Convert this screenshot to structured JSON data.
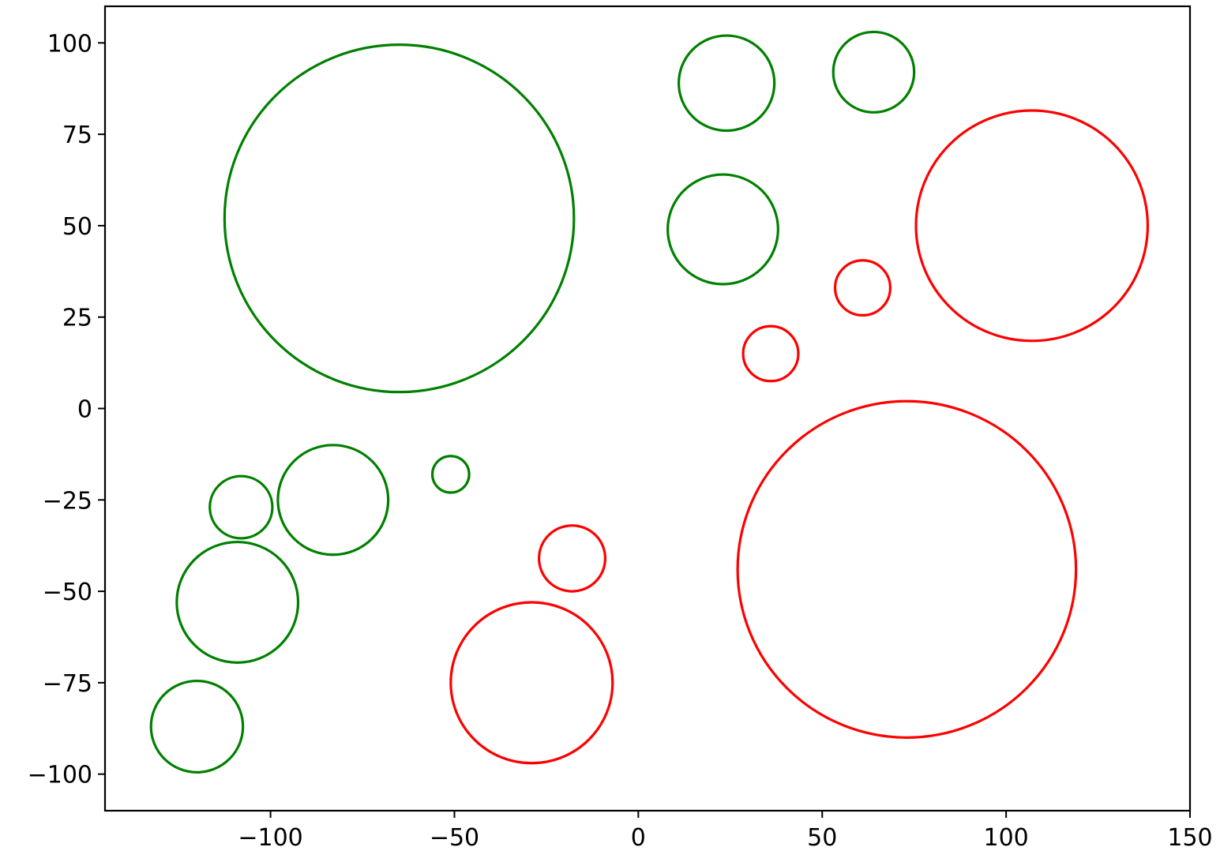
{
  "chart_data": {
    "type": "scatter",
    "title": "",
    "xlabel": "",
    "ylabel": "",
    "xlim": [
      -145,
      150
    ],
    "ylim": [
      -110,
      110
    ],
    "grid": false,
    "x_ticks": [
      -100,
      -50,
      0,
      50,
      100,
      150
    ],
    "y_ticks": [
      -100,
      -75,
      -50,
      -25,
      0,
      25,
      50,
      75,
      100
    ],
    "marker": "circle-outline",
    "colors": {
      "green": "#008000",
      "red": "#ff0000"
    },
    "series": [
      {
        "color": "#008000",
        "points": [
          {
            "x": -65,
            "y": 52,
            "r": 47.5
          },
          {
            "x": 24,
            "y": 89,
            "r": 13
          },
          {
            "x": 64,
            "y": 92,
            "r": 11
          },
          {
            "x": 23,
            "y": 49,
            "r": 15
          },
          {
            "x": -83,
            "y": -25,
            "r": 15
          },
          {
            "x": -108,
            "y": -27,
            "r": 8.5
          },
          {
            "x": -51,
            "y": -18,
            "r": 5
          },
          {
            "x": -109,
            "y": -53,
            "r": 16.5
          },
          {
            "x": -120,
            "y": -87,
            "r": 12.5
          }
        ]
      },
      {
        "color": "#ff0000",
        "points": [
          {
            "x": 107,
            "y": 50,
            "r": 31.5
          },
          {
            "x": 61,
            "y": 33,
            "r": 7.5
          },
          {
            "x": 36,
            "y": 15,
            "r": 7.5
          },
          {
            "x": 73,
            "y": -44,
            "r": 46
          },
          {
            "x": -18,
            "y": -41,
            "r": 9
          },
          {
            "x": -29,
            "y": -75,
            "r": 22
          }
        ]
      }
    ]
  }
}
